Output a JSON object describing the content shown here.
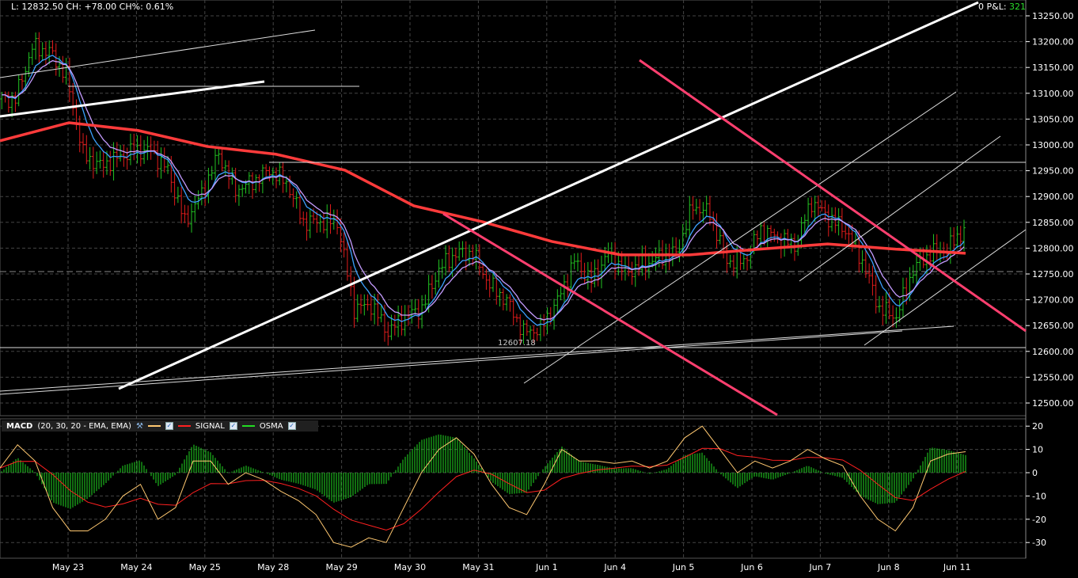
{
  "header": {
    "quote": "L: 12832.50 CH: +78.00 CH%: 0.61%",
    "pnl_label": "0 P&L:",
    "pnl_value": "321"
  },
  "macd_panel": {
    "title": "MACD",
    "params": "(20, 30, 20 - EMA, EMA)",
    "signal_label": "SIGNAL",
    "osma_label": "OSMA"
  },
  "annotation": "12607.18",
  "colors": {
    "bg": "#000000",
    "up": "#22c322",
    "down": "#e01b1b",
    "ma_long": "#ff3b3b",
    "ma_fast": "#3ca0ff",
    "ma_mid": "#c59cff",
    "macd": "#ffc870",
    "signal": "#ff2020",
    "osma": "#22dd22",
    "pnl": "#2bdc2b"
  },
  "chart_data": [
    {
      "type": "candlestick",
      "x_ticks": [
        "May 23",
        "May 24",
        "May 25",
        "May 28",
        "May 29",
        "May 30",
        "May 31",
        "Jun 1",
        "Jun 4",
        "Jun 5",
        "Jun 6",
        "Jun 7",
        "Jun 8",
        "Jun 11"
      ],
      "y_ticks": [
        13250,
        13200,
        13150,
        13100,
        13050,
        13000,
        12950,
        12900,
        12850,
        12800,
        12750,
        12700,
        12650,
        12600,
        12550,
        12500
      ],
      "ylim": [
        12480,
        13280
      ],
      "grid": true,
      "closes": [
        13089,
        13089,
        13189,
        13181,
        13135,
        12982,
        12959,
        12974,
        12989,
        12989,
        12951,
        12851,
        12905,
        12982,
        12913,
        12928,
        12951,
        12928,
        12851,
        12851,
        12851,
        12683,
        12690,
        12637,
        12667,
        12683,
        12759,
        12790,
        12790,
        12729,
        12698,
        12637,
        12644,
        12698,
        12775,
        12736,
        12790,
        12752,
        12767,
        12782,
        12790,
        12882,
        12867,
        12775,
        12775,
        12836,
        12820,
        12805,
        12890,
        12859,
        12836,
        12775,
        12683,
        12667,
        12759,
        12790,
        12798,
        12836
      ],
      "ma_long": [
        13008,
        13043,
        13028,
        12997,
        12982,
        12951,
        12882,
        12851,
        12813,
        12787,
        12787,
        12798,
        12808,
        12798,
        12790
      ],
      "last": 12832.5
    },
    {
      "type": "line",
      "title": "MACD",
      "y_ticks": [
        20,
        10,
        0,
        -10,
        -20,
        -30
      ],
      "ylim": [
        -36,
        22
      ],
      "macd": [
        2,
        12,
        5,
        -15,
        -25,
        -25,
        -20,
        -10,
        -5,
        -20,
        -15,
        5,
        5,
        -5,
        0,
        -3,
        -8,
        -12,
        -18,
        -30,
        -32,
        -28,
        -30,
        -15,
        0,
        10,
        15,
        8,
        -5,
        -15,
        -18,
        -5,
        10,
        5,
        5,
        4,
        5,
        2,
        5,
        15,
        20,
        10,
        0,
        5,
        2,
        5,
        10,
        6,
        3,
        -10,
        -20,
        -25,
        -15,
        5,
        8,
        9
      ],
      "series_names": [
        "SIGNAL",
        "OSMA"
      ]
    }
  ]
}
